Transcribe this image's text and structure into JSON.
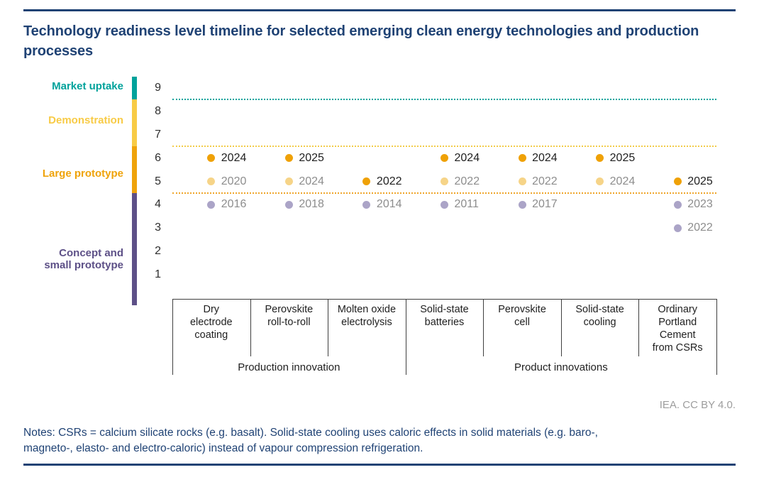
{
  "title": "Technology readiness level timeline for selected emerging clean energy technologies and production processes",
  "credit": "IEA. CC BY 4.0.",
  "notes": {
    "lines": [
      "Notes: CSRs = calcium silicate rocks (e.g. basalt). Solid-state cooling uses caloric effects in solid materials (e.g. baro-,",
      "magneto-, elasto- and electro-caloric) instead of vapour compression refrigeration."
    ]
  },
  "colors": {
    "navy": "#1F4274",
    "teal": "#00A29B",
    "demo_yellow": "#F8CB46",
    "proto_orange": "#EFA30B",
    "concept_purple": "#5D5087",
    "dot_orange": "#EFA106",
    "dot_light_yellow": "#F6D488",
    "dot_light_purple": "#ABA4C7",
    "year_latest": "#1F1F1F",
    "year_earlier": "#8D8D8D",
    "axis_text": "#2E2E2E",
    "table_line": "#3F3F3F",
    "credit_gray": "#9D9D9D",
    "threshold_teal": "#00A29B",
    "threshold_yellow": "#F2CC49",
    "threshold_orange": "#EFA62B"
  },
  "chart_data": {
    "type": "scatter",
    "title": "Technology readiness level timeline for selected emerging clean energy technologies and production processes",
    "y_axis": {
      "ticks": [
        9,
        8,
        7,
        6,
        5,
        4,
        3,
        2,
        1
      ],
      "range": [
        0.5,
        9.5
      ],
      "grid": false
    },
    "stages": [
      {
        "label": "Market uptake",
        "lines": [
          "Market uptake"
        ],
        "levels": [
          9,
          9
        ],
        "color_key": "teal"
      },
      {
        "label": "Demonstration",
        "lines": [
          "Demonstration"
        ],
        "levels": [
          7,
          8
        ],
        "color_key": "demo_yellow"
      },
      {
        "label": "Large prototype",
        "lines": [
          "Large prototype"
        ],
        "levels": [
          5,
          6
        ],
        "color_key": "proto_orange"
      },
      {
        "label": "Concept and small prototype",
        "lines": [
          "Concept and",
          "small prototype"
        ],
        "levels": [
          1,
          4
        ],
        "color_key": "concept_purple"
      }
    ],
    "threshold_lines": [
      {
        "y": 8.5,
        "color_key": "threshold_teal"
      },
      {
        "y": 6.5,
        "color_key": "threshold_yellow"
      },
      {
        "y": 4.5,
        "color_key": "threshold_orange"
      }
    ],
    "categories": [
      {
        "name": "Dry electrode coating",
        "lines": [
          "Dry",
          "electrode",
          "coating"
        ]
      },
      {
        "name": "Perovskite roll-to-roll",
        "lines": [
          "Perovskite",
          "roll-to-roll"
        ]
      },
      {
        "name": "Molten oxide electrolysis",
        "lines": [
          "Molten oxide",
          "electrolysis"
        ]
      },
      {
        "name": "Solid-state batteries",
        "lines": [
          "Solid-state",
          "batteries"
        ]
      },
      {
        "name": "Perovskite cell",
        "lines": [
          "Perovskite",
          "cell"
        ]
      },
      {
        "name": "Solid-state cooling",
        "lines": [
          "Solid-state",
          "cooling"
        ]
      },
      {
        "name": "Ordinary Portland Cement from CSRs",
        "lines": [
          "Ordinary",
          "Portland",
          "Cement",
          "from CSRs"
        ]
      }
    ],
    "category_groups": [
      {
        "label": "Production innovation",
        "from": 0,
        "to": 2
      },
      {
        "label": "Product innovations",
        "from": 3,
        "to": 6
      }
    ],
    "points": [
      {
        "category": "Dry electrode coating",
        "ci": 0,
        "trl": 6,
        "year": "2024",
        "latest": true
      },
      {
        "category": "Dry electrode coating",
        "ci": 0,
        "trl": 5,
        "year": "2020",
        "latest": false
      },
      {
        "category": "Dry electrode coating",
        "ci": 0,
        "trl": 4,
        "year": "2016",
        "latest": false
      },
      {
        "category": "Perovskite roll-to-roll",
        "ci": 1,
        "trl": 6,
        "year": "2025",
        "latest": true
      },
      {
        "category": "Perovskite roll-to-roll",
        "ci": 1,
        "trl": 5,
        "year": "2024",
        "latest": false
      },
      {
        "category": "Perovskite roll-to-roll",
        "ci": 1,
        "trl": 4,
        "year": "2018",
        "latest": false
      },
      {
        "category": "Molten oxide electrolysis",
        "ci": 2,
        "trl": 5,
        "year": "2022",
        "latest": true
      },
      {
        "category": "Molten oxide electrolysis",
        "ci": 2,
        "trl": 4,
        "year": "2014",
        "latest": false
      },
      {
        "category": "Solid-state batteries",
        "ci": 3,
        "trl": 6,
        "year": "2024",
        "latest": true
      },
      {
        "category": "Solid-state batteries",
        "ci": 3,
        "trl": 5,
        "year": "2022",
        "latest": false
      },
      {
        "category": "Solid-state batteries",
        "ci": 3,
        "trl": 4,
        "year": "2011",
        "latest": false
      },
      {
        "category": "Perovskite cell",
        "ci": 4,
        "trl": 6,
        "year": "2024",
        "latest": true
      },
      {
        "category": "Perovskite cell",
        "ci": 4,
        "trl": 5,
        "year": "2022",
        "latest": false
      },
      {
        "category": "Perovskite cell",
        "ci": 4,
        "trl": 4,
        "year": "2017",
        "latest": false
      },
      {
        "category": "Solid-state cooling",
        "ci": 5,
        "trl": 6,
        "year": "2025",
        "latest": true
      },
      {
        "category": "Solid-state cooling",
        "ci": 5,
        "trl": 5,
        "year": "2024",
        "latest": false
      },
      {
        "category": "Ordinary Portland Cement from CSRs",
        "ci": 6,
        "trl": 5,
        "year": "2025",
        "latest": true
      },
      {
        "category": "Ordinary Portland Cement from CSRs",
        "ci": 6,
        "trl": 4,
        "year": "2023",
        "latest": false
      },
      {
        "category": "Ordinary Portland Cement from CSRs",
        "ci": 6,
        "trl": 3,
        "year": "2022",
        "latest": false
      }
    ]
  }
}
